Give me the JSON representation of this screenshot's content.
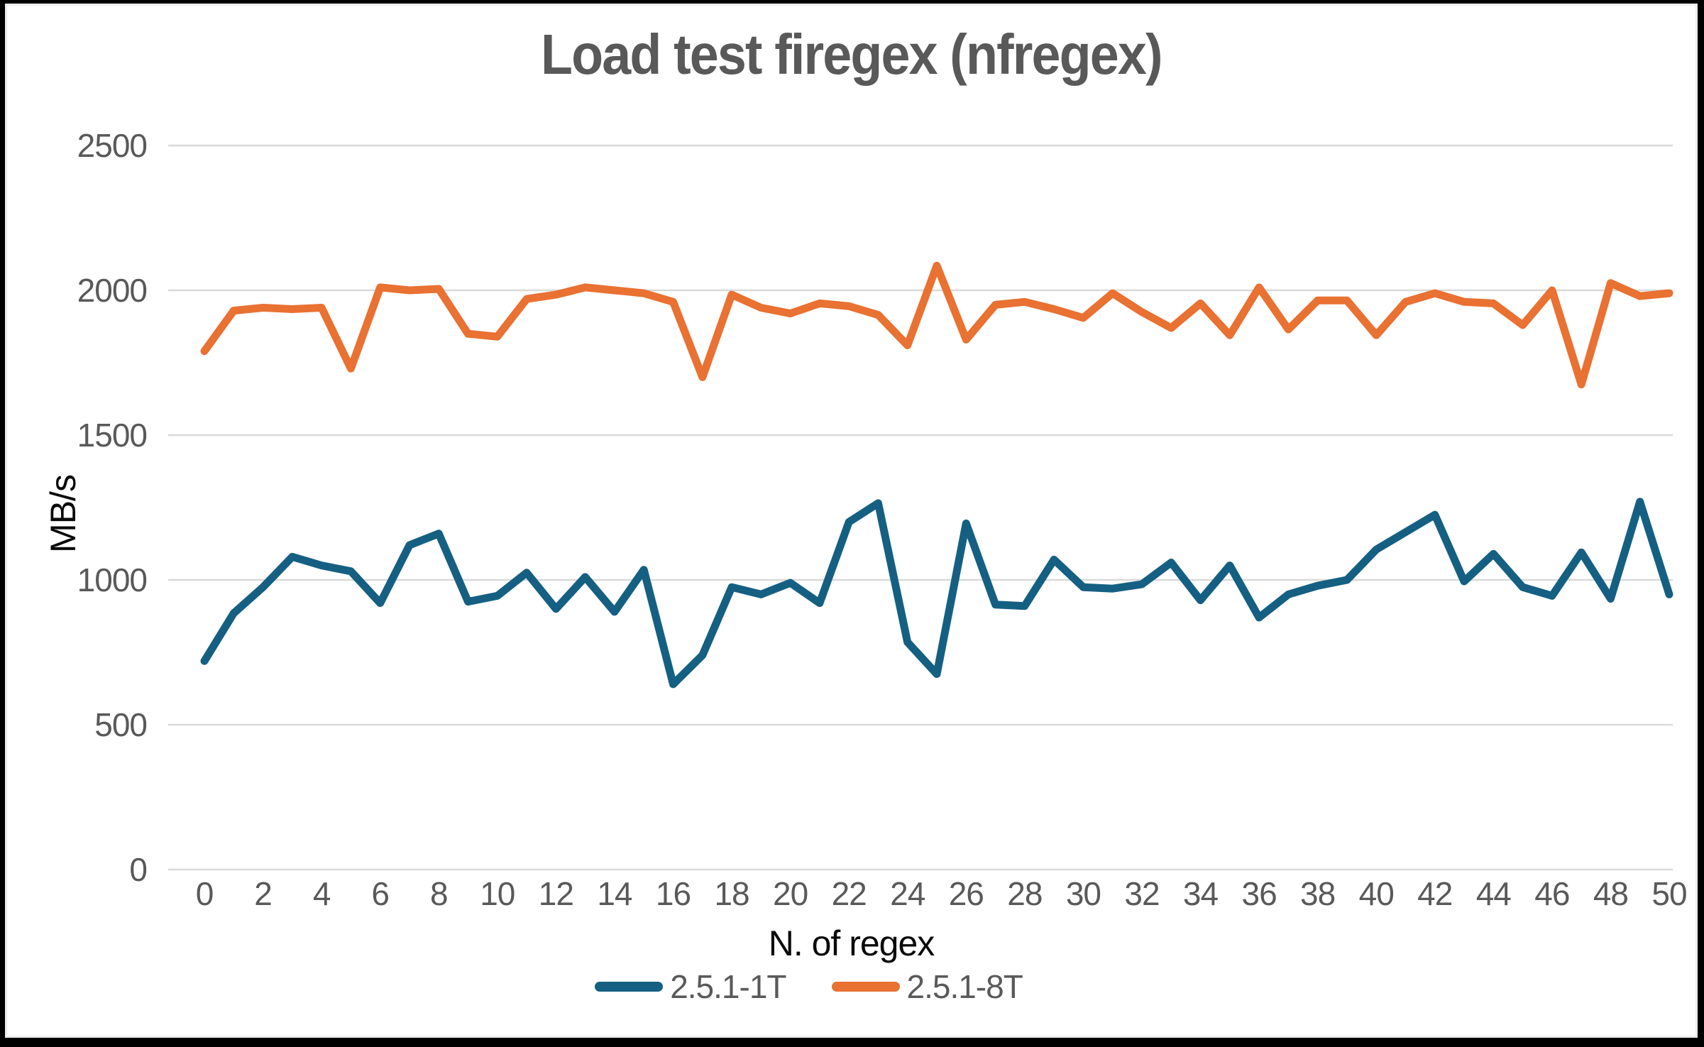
{
  "chart": {
    "title": "Load test firegex (nfregex)",
    "y_axis": {
      "label": "MB/s",
      "tick_labels": [
        "0",
        "500",
        "1000",
        "1500",
        "2000",
        "2500"
      ],
      "min": 0,
      "max": 2500,
      "step": 500
    },
    "x_axis": {
      "label": "N. of regex",
      "tick_labels": [
        "0",
        "2",
        "4",
        "6",
        "8",
        "10",
        "12",
        "14",
        "16",
        "18",
        "20",
        "22",
        "24",
        "26",
        "28",
        "30",
        "32",
        "34",
        "36",
        "38",
        "40",
        "42",
        "44",
        "46",
        "48",
        "50"
      ],
      "min": 0,
      "max": 50,
      "tick_step": 2
    },
    "legend": [
      {
        "label": "2.5.1-1T",
        "color": "#156082"
      },
      {
        "label": "2.5.1-8T",
        "color": "#E97132"
      }
    ],
    "colors": {
      "gridline": "#D9D9D9",
      "title_text": "#595959",
      "tick_text": "#595959",
      "axis_title_text": "#0a0a0a",
      "background": "#ffffff",
      "frame": "#000000"
    }
  },
  "chart_data": {
    "type": "line",
    "title": "Load test firegex (nfregex)",
    "xlabel": "N. of regex",
    "ylabel": "MB/s",
    "x": [
      0,
      1,
      2,
      3,
      4,
      5,
      6,
      7,
      8,
      9,
      10,
      11,
      12,
      13,
      14,
      15,
      16,
      17,
      18,
      19,
      20,
      21,
      22,
      23,
      24,
      25,
      26,
      27,
      28,
      29,
      30,
      31,
      32,
      33,
      34,
      35,
      36,
      37,
      38,
      39,
      40,
      41,
      42,
      43,
      44,
      45,
      46,
      47,
      48,
      49,
      50
    ],
    "xlim": [
      0,
      50
    ],
    "ylim": [
      0,
      2500
    ],
    "grid": true,
    "legend_position": "bottom",
    "series": [
      {
        "name": "2.5.1-1T",
        "color": "#156082",
        "values": [
          720,
          885,
          975,
          1080,
          1050,
          1030,
          920,
          1120,
          1160,
          925,
          945,
          1025,
          900,
          1010,
          890,
          1035,
          640,
          740,
          975,
          950,
          990,
          920,
          1200,
          1265,
          785,
          675,
          1195,
          915,
          910,
          1070,
          975,
          970,
          985,
          1060,
          930,
          1050,
          870,
          950,
          980,
          1000,
          1105,
          1165,
          1225,
          995,
          1090,
          975,
          945,
          1095,
          935,
          1270,
          950
        ]
      },
      {
        "name": "2.5.1-8T",
        "color": "#E97132",
        "values": [
          1790,
          1930,
          1940,
          1935,
          1940,
          1730,
          2010,
          2000,
          2005,
          1850,
          1840,
          1970,
          1985,
          2010,
          2000,
          1990,
          1960,
          1700,
          1985,
          1940,
          1920,
          1955,
          1945,
          1915,
          1810,
          2085,
          1830,
          1950,
          1960,
          1935,
          1905,
          1990,
          1925,
          1870,
          1955,
          1845,
          2010,
          1865,
          1965,
          1965,
          1845,
          1960,
          1990,
          1960,
          1955,
          1880,
          2000,
          1675,
          2025,
          1980,
          1990
        ]
      }
    ]
  }
}
